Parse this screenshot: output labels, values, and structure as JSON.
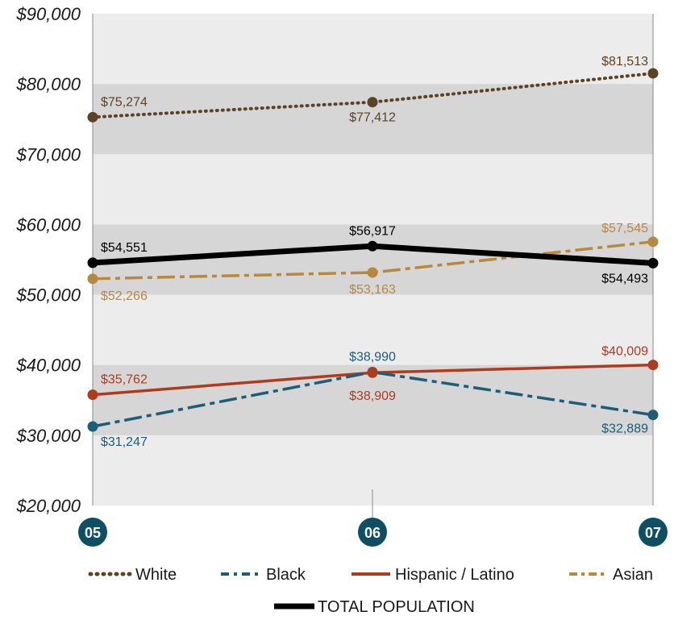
{
  "chart_data": {
    "type": "line",
    "categories": [
      "05",
      "06",
      "07"
    ],
    "yticks": [
      "$20,000",
      "$30,000",
      "$40,000",
      "$50,000",
      "$60,000",
      "$70,000",
      "$80,000",
      "$90,000"
    ],
    "ylim": [
      20000,
      90000
    ],
    "grid": "alternating bands",
    "legend_position": "bottom",
    "series": [
      {
        "key": "white",
        "name": "White",
        "values": [
          75274,
          77412,
          81513
        ],
        "labels": [
          "$75,274",
          "$77,412",
          "$81,513"
        ],
        "color": "#5c4325",
        "style": "dotted"
      },
      {
        "key": "black",
        "name": "Black",
        "values": [
          31247,
          38990,
          32889
        ],
        "labels": [
          "$31,247",
          "$38,990",
          "$32,889"
        ],
        "color": "#1a5e78",
        "style": "dash-dot"
      },
      {
        "key": "hispanic",
        "name": "Hispanic / Latino",
        "values": [
          35762,
          38909,
          40009
        ],
        "labels": [
          "$35,762",
          "$38,909",
          "$40,009"
        ],
        "color": "#b03a1e",
        "style": "solid"
      },
      {
        "key": "asian",
        "name": "Asian",
        "values": [
          52266,
          53163,
          57545
        ],
        "labels": [
          "$52,266",
          "$53,163",
          "$57,545"
        ],
        "color": "#b8893a",
        "style": "dash-dot"
      },
      {
        "key": "total",
        "name": "TOTAL POPULATION",
        "values": [
          54551,
          56917,
          54493
        ],
        "labels": [
          "$54,551",
          "$56,917",
          "$54,493"
        ],
        "color": "#000000",
        "style": "thick"
      }
    ],
    "xlabel_badge_color": "#0e4f63"
  }
}
